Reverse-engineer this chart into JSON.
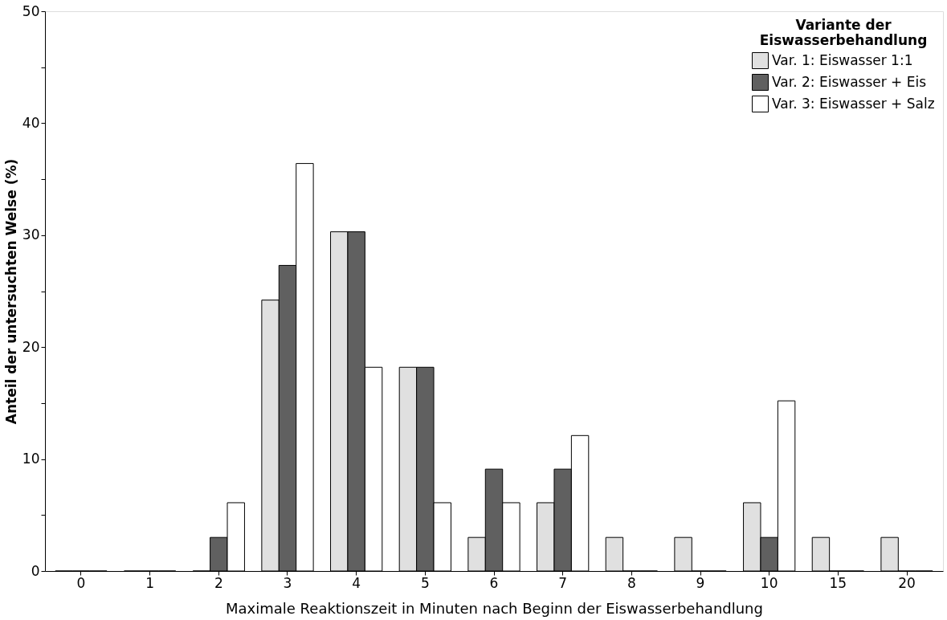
{
  "chart_data": {
    "type": "bar",
    "xlabel": "Maximale Reaktionszeit in Minuten nach Beginn der Eiswasserbehandlung",
    "ylabel": "Anteil der untersuchten Welse (%)",
    "legend_title": "Variante der Eiswasserbehandlung",
    "categories": [
      "0",
      "1",
      "2",
      "3",
      "4",
      "5",
      "6",
      "7",
      "8",
      "9",
      "10",
      "15",
      "20"
    ],
    "series": [
      {
        "name": "Var. 1: Eiswasser 1:1",
        "color": "#e0e0e0",
        "values": [
          0,
          0,
          0,
          24.2,
          30.3,
          18.2,
          3.0,
          6.1,
          3.0,
          3.0,
          6.1,
          3.0,
          3.0
        ]
      },
      {
        "name": "Var. 2: Eiswasser + Eis",
        "color": "#606060",
        "values": [
          0,
          0,
          3.0,
          27.3,
          30.3,
          18.2,
          9.1,
          9.1,
          0,
          0,
          3.0,
          0,
          0
        ]
      },
      {
        "name": "Var. 3: Eiswasser + Salz",
        "color": "#ffffff",
        "values": [
          0,
          0,
          6.1,
          36.4,
          18.2,
          6.1,
          6.1,
          12.1,
          0,
          0,
          15.2,
          0,
          0
        ]
      }
    ],
    "ylim": [
      0,
      50
    ],
    "yticks": [
      0,
      {
        "value": 5,
        "label": null
      },
      10,
      {
        "value": 15,
        "label": null
      },
      20,
      {
        "value": 25,
        "label": null
      },
      30,
      {
        "value": 35,
        "label": null
      },
      40,
      {
        "value": 45,
        "label": null
      },
      50
    ],
    "grid": false,
    "legend": "top right"
  }
}
